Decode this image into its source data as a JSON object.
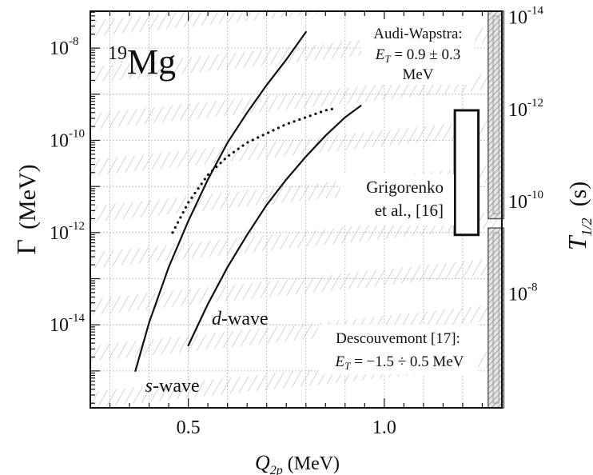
{
  "chart_data": {
    "type": "line",
    "title": "",
    "nucleus": {
      "mass": "19",
      "element": "Mg"
    },
    "xlabel": {
      "symbol": "Q",
      "subscript": "2p",
      "unit": "(MeV)"
    },
    "ylabel": {
      "symbol": "Γ",
      "unit": "(MeV)"
    },
    "ylabel_right": {
      "symbol": "T",
      "subscript": "1/2",
      "unit": "(s)"
    },
    "xlim": [
      0.25,
      1.3
    ],
    "ylim_log10": [
      -15.8,
      -7.2
    ],
    "x_scale": "linear",
    "y_scale": "log",
    "grid": true,
    "x_ticks": [
      {
        "value": 0.5,
        "label": "0.5"
      },
      {
        "value": 1.0,
        "label": "1.0"
      }
    ],
    "y_ticks": [
      {
        "exp": -8,
        "base": "10",
        "power": "-8"
      },
      {
        "exp": -10,
        "base": "10",
        "power": "-10"
      },
      {
        "exp": -12,
        "base": "10",
        "power": "-12"
      },
      {
        "exp": -14,
        "base": "10",
        "power": "-14"
      }
    ],
    "y_ticks_right": [
      {
        "gamma_exp": -7.33,
        "base": "10",
        "power": "-14"
      },
      {
        "gamma_exp": -9.33,
        "base": "10",
        "power": "-12"
      },
      {
        "gamma_exp": -11.33,
        "base": "10",
        "power": "-10"
      },
      {
        "gamma_exp": -13.33,
        "base": "10",
        "power": "-8"
      }
    ],
    "series": [
      {
        "name": "s-wave",
        "style": "solid",
        "label_italic": "s",
        "label_rest": "-wave",
        "label_at": {
          "x": 0.39,
          "log10y": -15.45
        },
        "x": [
          0.365,
          0.4,
          0.45,
          0.5,
          0.55,
          0.6,
          0.65,
          0.7,
          0.75,
          0.8
        ],
        "log10y": [
          -15.0,
          -13.95,
          -12.75,
          -11.75,
          -10.85,
          -10.05,
          -9.4,
          -8.8,
          -8.25,
          -7.65
        ]
      },
      {
        "name": "d-wave",
        "style": "solid",
        "label_italic": "d",
        "label_rest": "-wave",
        "label_at": {
          "x": 0.56,
          "log10y": -14.0
        },
        "x": [
          0.5,
          0.55,
          0.6,
          0.65,
          0.7,
          0.75,
          0.8,
          0.85,
          0.9,
          0.94
        ],
        "log10y": [
          -14.45,
          -13.55,
          -12.75,
          -12.05,
          -11.4,
          -10.85,
          -10.35,
          -9.9,
          -9.5,
          -9.25
        ]
      },
      {
        "name": "",
        "style": "dotted",
        "x": [
          0.46,
          0.5,
          0.55,
          0.6,
          0.65,
          0.7,
          0.75,
          0.8,
          0.85,
          0.88
        ],
        "log10y": [
          -12.0,
          -11.35,
          -10.75,
          -10.35,
          -10.05,
          -9.85,
          -9.65,
          -9.5,
          -9.35,
          -9.3
        ]
      }
    ],
    "annotations": [
      {
        "id": "aw",
        "lines": [
          "Audi-Wapstra:",
          "E_T = 0.9 ± 0.3",
          "MeV"
        ]
      },
      {
        "id": "grig",
        "lines": [
          "Grigorenko",
          "et al., [16]"
        ]
      },
      {
        "id": "desc",
        "lines": [
          "Descouvemont [17]:",
          "E_T = −1.5 ÷ 0.5 MeV"
        ]
      }
    ],
    "bars": [
      {
        "name": "Grigorenko et al., [16]",
        "x_range": [
          1.18,
          1.24
        ],
        "log10y_range": [
          -12.05,
          -9.35
        ],
        "style": "open"
      },
      {
        "name": "Audi-Wapstra",
        "x_range": [
          1.265,
          1.305
        ],
        "log10y_range": [
          -11.7,
          -7.15
        ],
        "style": "hatched"
      },
      {
        "name": "Descouvemont [17]",
        "x_range": [
          1.265,
          1.305
        ],
        "log10y_range": [
          -15.8,
          -11.9
        ],
        "style": "hatched"
      }
    ]
  },
  "text": {
    "aw_line1": "Audi-Wapstra:",
    "aw_line2_sym": "E",
    "aw_line2_sub": "T",
    "aw_line2_val": " = 0.9 ± 0.3",
    "aw_line3": "MeV",
    "grig_line1": "Grigorenko",
    "grig_line2": "et al., [16]",
    "desc_line1": "Descouvemont [17]:",
    "desc_line2_sym": "E",
    "desc_line2_sub": "T",
    "desc_line2_val": " = −1.5 ÷ 0.5 MeV"
  }
}
